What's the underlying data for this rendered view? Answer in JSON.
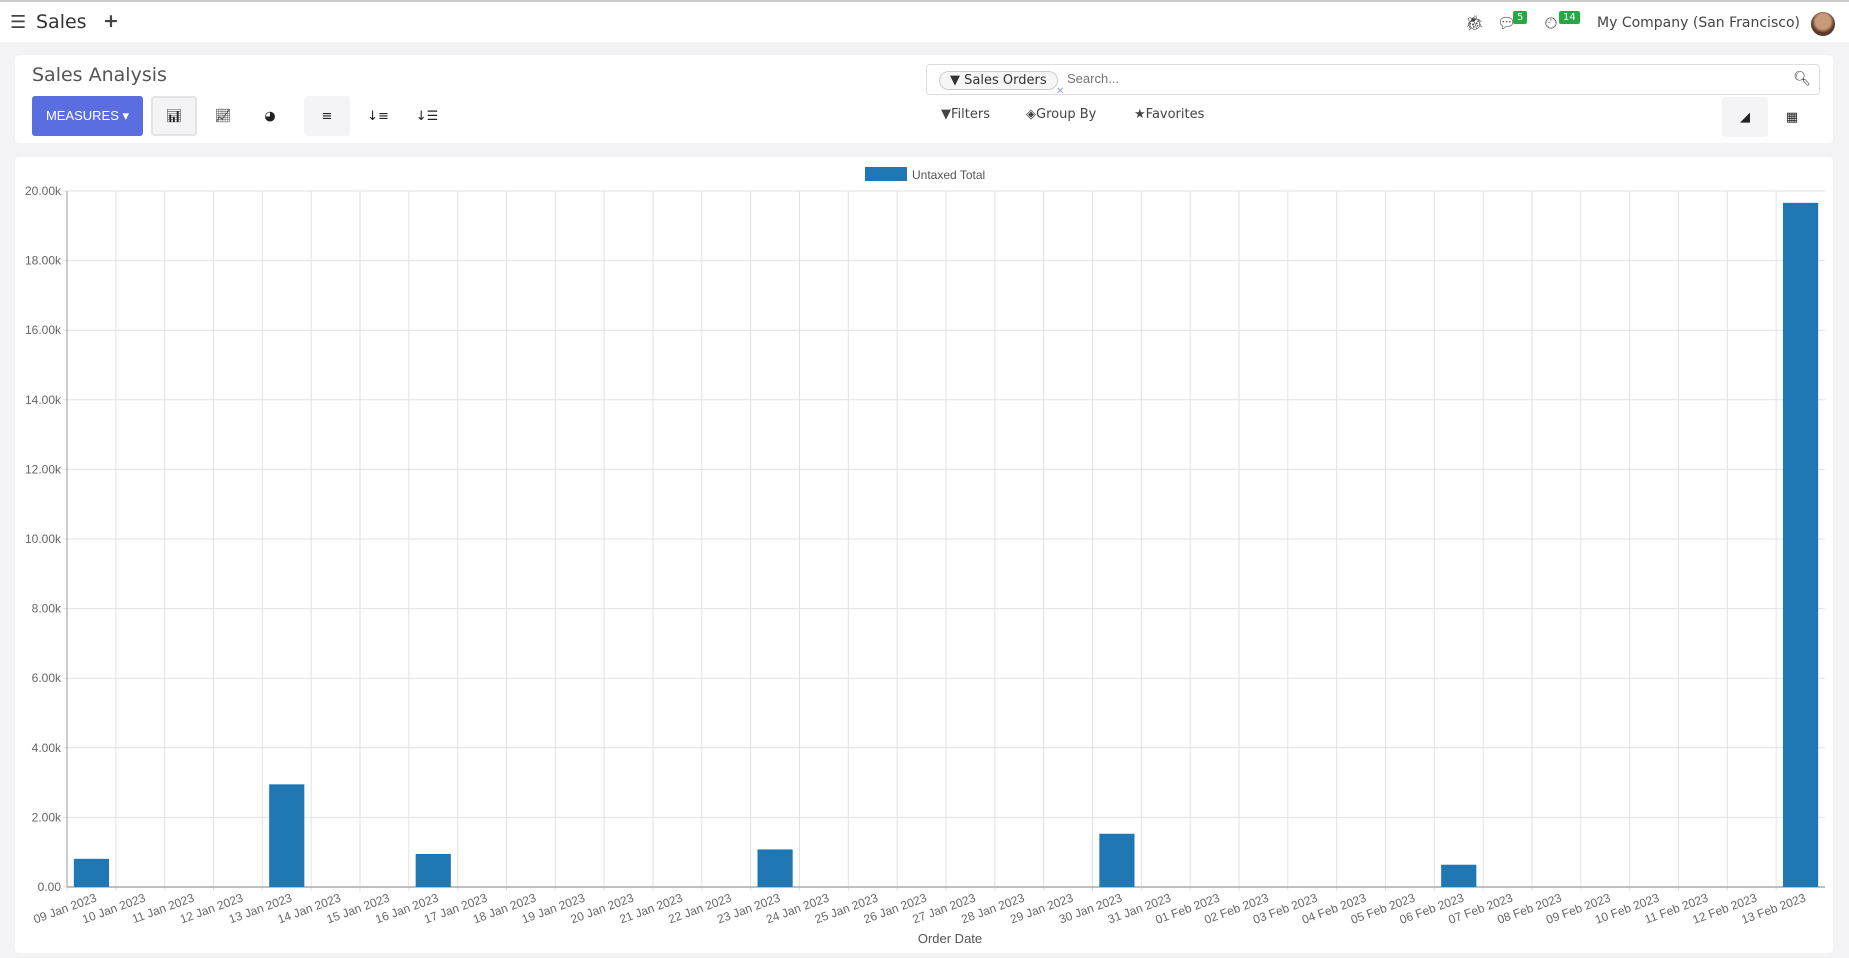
{
  "topbar": {
    "app_name": "Sales",
    "messages_count": "5",
    "activities_count": "14",
    "company": "My Company (San Francisco)"
  },
  "control_panel": {
    "title": "Sales Analysis",
    "measures_label": "MEASURES",
    "search": {
      "facet": "Sales Orders",
      "placeholder": "Search..."
    },
    "filters_label": "Filters",
    "group_by_label": "Group By",
    "favorites_label": "Favorites"
  },
  "chart_data": {
    "type": "bar",
    "legend": [
      "Untaxed Total"
    ],
    "legend_position": "top",
    "xlabel": "Order Date",
    "ylabel": "",
    "ylim": [
      0,
      20000
    ],
    "yticks": [
      "0.00",
      "2.00k",
      "4.00k",
      "6.00k",
      "8.00k",
      "10.00k",
      "12.00k",
      "14.00k",
      "16.00k",
      "18.00k",
      "20.00k"
    ],
    "grid": true,
    "color": "#1f77b4",
    "categories": [
      "09 Jan 2023",
      "10 Jan 2023",
      "11 Jan 2023",
      "12 Jan 2023",
      "13 Jan 2023",
      "14 Jan 2023",
      "15 Jan 2023",
      "16 Jan 2023",
      "17 Jan 2023",
      "18 Jan 2023",
      "19 Jan 2023",
      "20 Jan 2023",
      "21 Jan 2023",
      "22 Jan 2023",
      "23 Jan 2023",
      "24 Jan 2023",
      "25 Jan 2023",
      "26 Jan 2023",
      "27 Jan 2023",
      "28 Jan 2023",
      "29 Jan 2023",
      "30 Jan 2023",
      "31 Jan 2023",
      "01 Feb 2023",
      "02 Feb 2023",
      "03 Feb 2023",
      "04 Feb 2023",
      "05 Feb 2023",
      "06 Feb 2023",
      "07 Feb 2023",
      "08 Feb 2023",
      "09 Feb 2023",
      "10 Feb 2023",
      "11 Feb 2023",
      "12 Feb 2023",
      "13 Feb 2023"
    ],
    "series": [
      {
        "name": "Untaxed Total",
        "values": [
          810,
          0,
          0,
          0,
          2950,
          0,
          0,
          950,
          0,
          0,
          0,
          0,
          0,
          0,
          1080,
          0,
          0,
          0,
          0,
          0,
          0,
          1530,
          0,
          0,
          0,
          0,
          0,
          0,
          640,
          0,
          0,
          0,
          0,
          0,
          0,
          19660
        ]
      }
    ]
  }
}
